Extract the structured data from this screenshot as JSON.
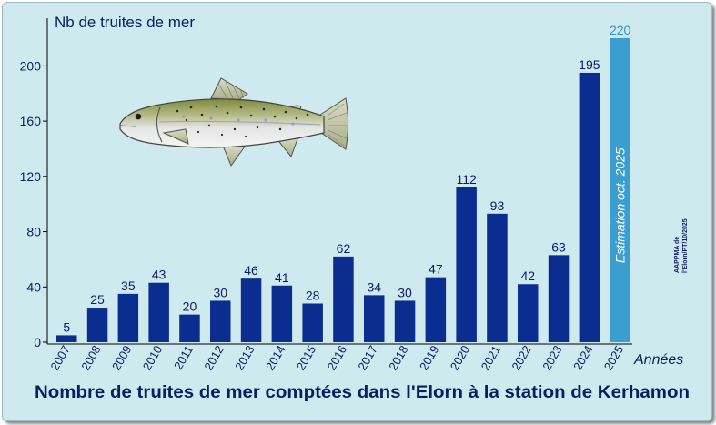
{
  "chart_data": {
    "type": "bar",
    "title": "Nombre de truites de mer comptées dans l'Elorn à la station de Kerhamon",
    "ylabel": "Nb de truites de mer",
    "xlabel": "Années",
    "categories": [
      "2007",
      "2008",
      "2009",
      "2010",
      "2011",
      "2012",
      "2013",
      "2014",
      "2015",
      "2016",
      "2017",
      "2018",
      "2019",
      "2020",
      "2021",
      "2022",
      "2023",
      "2024",
      "2025"
    ],
    "values": [
      5,
      25,
      35,
      43,
      20,
      30,
      46,
      41,
      28,
      62,
      34,
      30,
      47,
      112,
      93,
      42,
      63,
      195,
      220
    ],
    "ylim": [
      0,
      220
    ],
    "yticks": [
      0,
      40,
      80,
      120,
      160,
      200
    ],
    "estimate": {
      "category": "2025",
      "label": "Estimation oct. 2025"
    },
    "grid": false,
    "bar_color": "#0b2d8f",
    "estimate_color": "#3a9fd0",
    "estimate_label_color": "#2f97c9",
    "credit": [
      "AAPPMA de",
      "l'Elorn/PT/10/2025"
    ],
    "illustration": "sea-trout"
  }
}
